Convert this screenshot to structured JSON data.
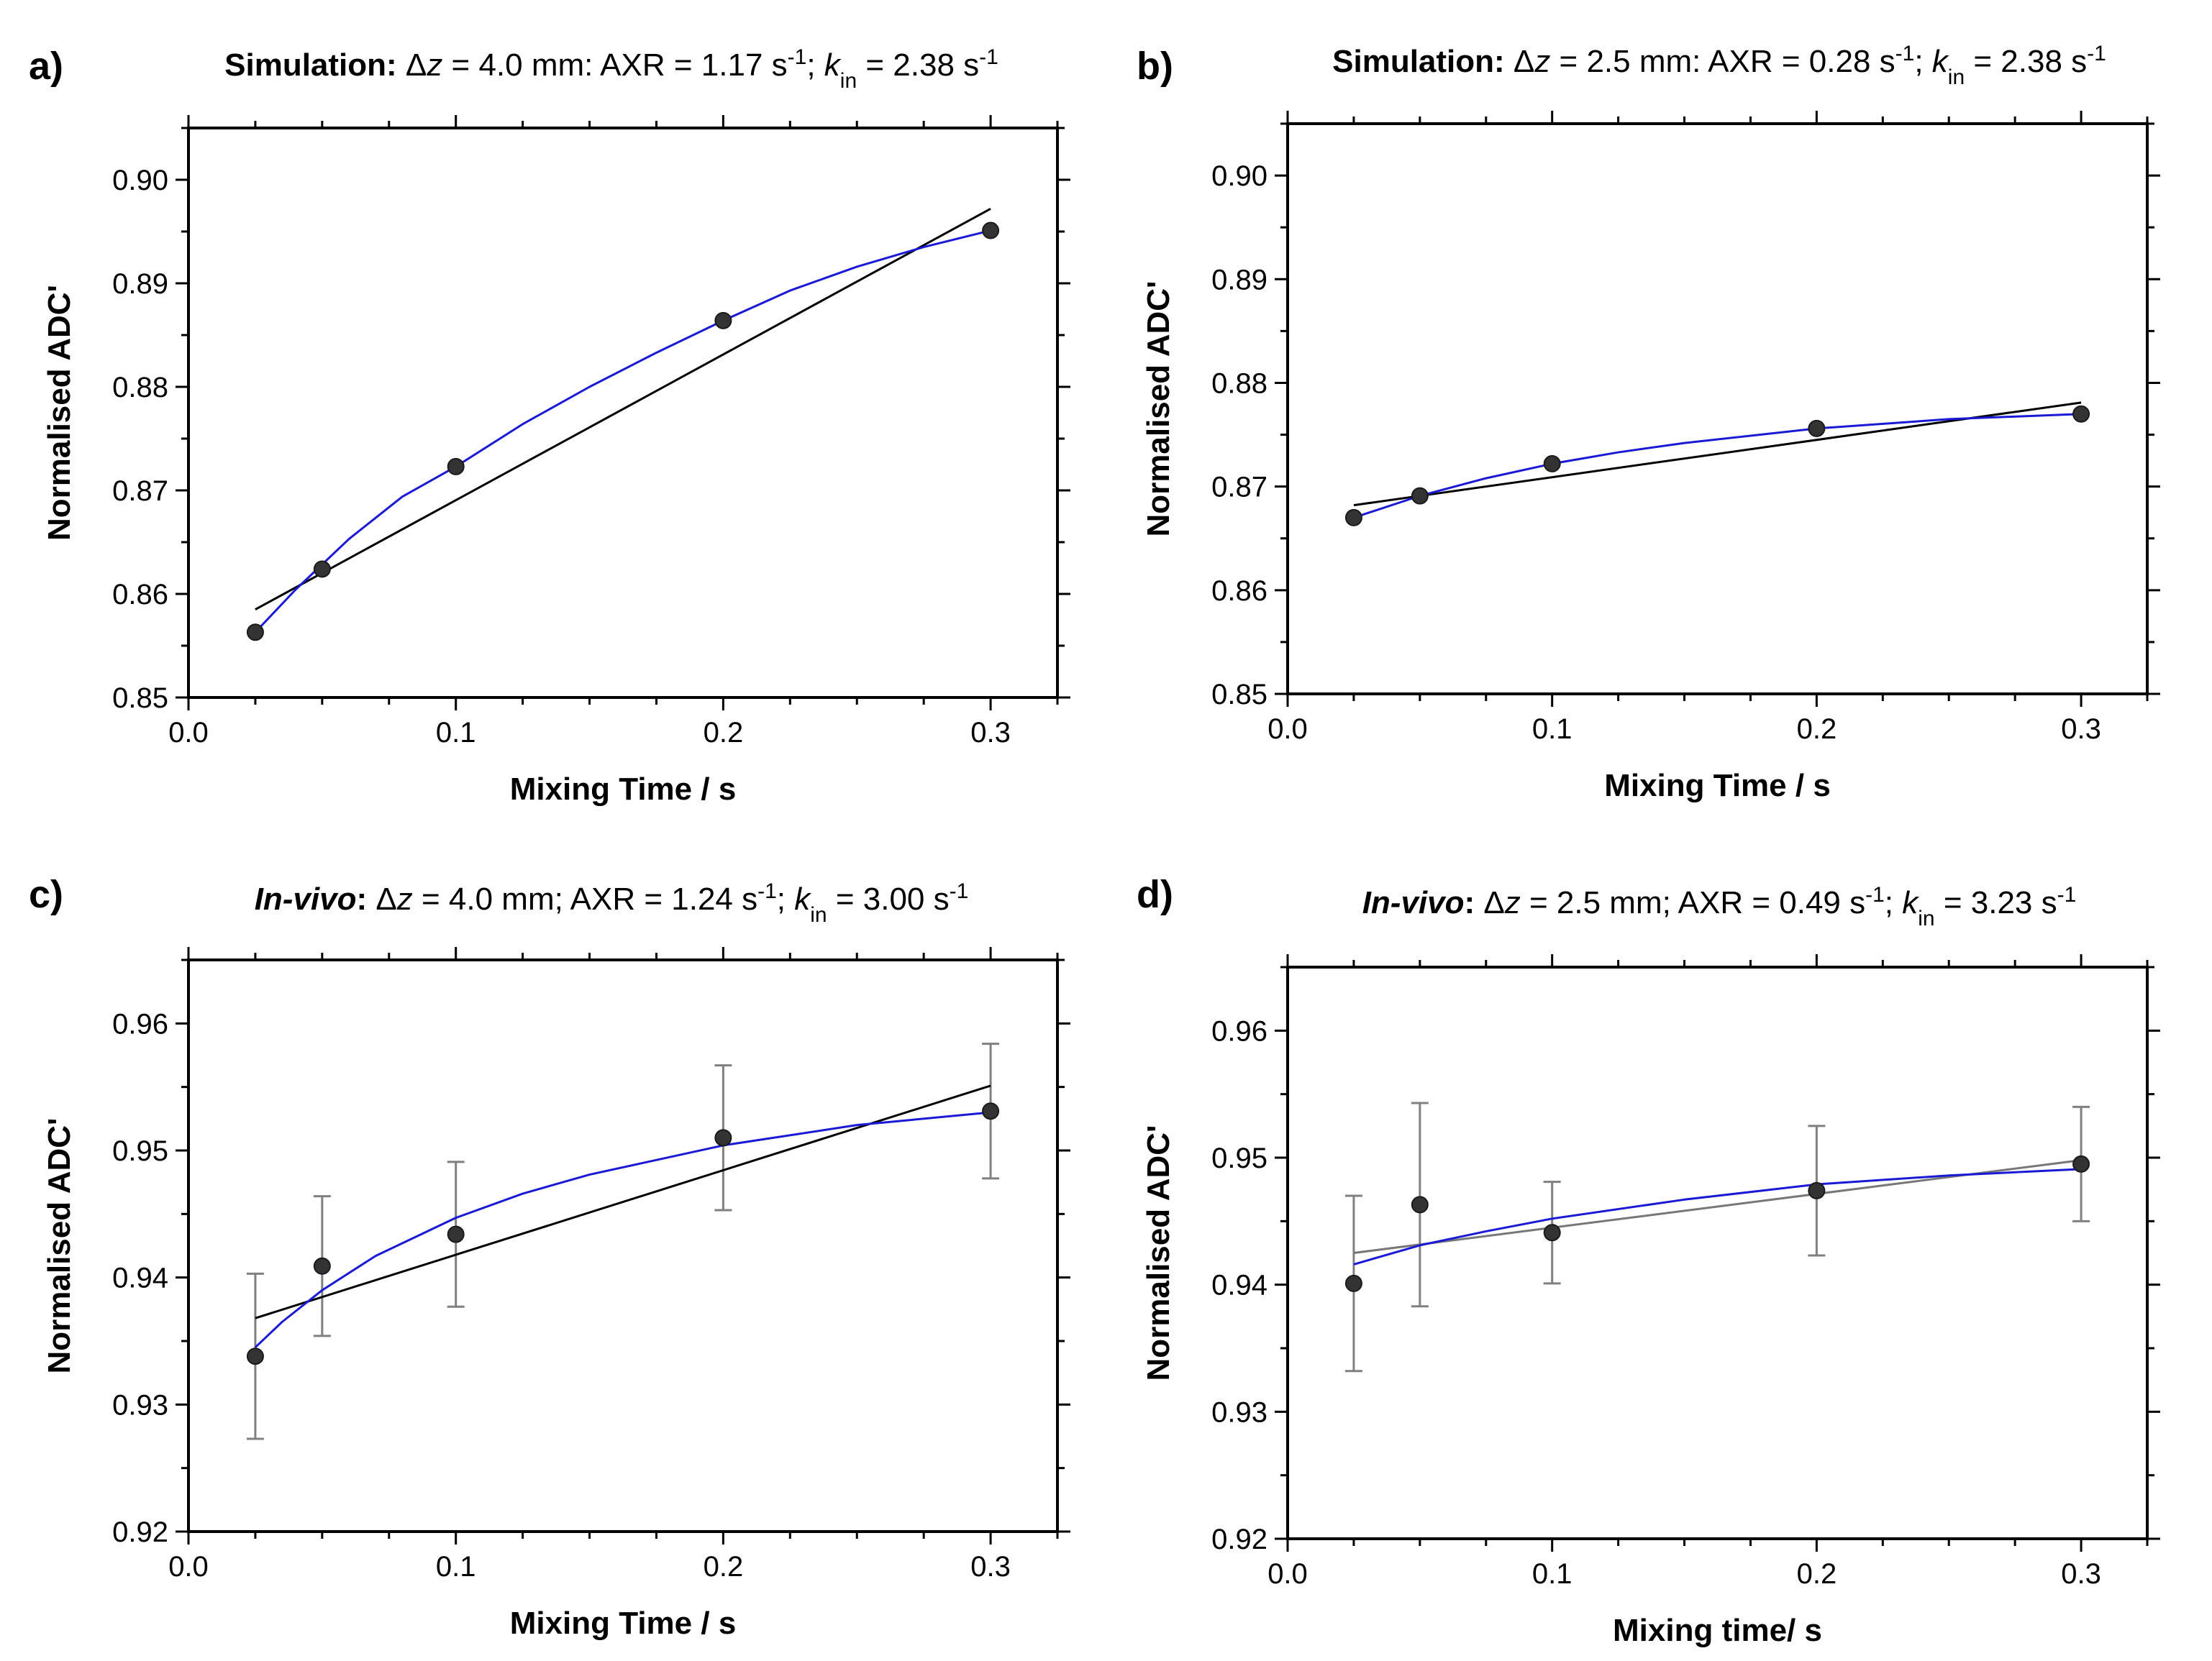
{
  "chart_data": [
    {
      "panel": "a)",
      "type": "scatter",
      "title": {
        "prefix": "Simulation:",
        "italic_prefix": false,
        "rest1": " Δ",
        "z": "z",
        "rest2": " = 4.0 mm: AXR = 1.17 s",
        "exp1": "-1",
        "rest3": "; ",
        "k": "k",
        "k_sub": "in",
        "rest4": " = 2.38 s",
        "exp2": "-1"
      },
      "xlabel": "Mixing Time / s",
      "ylabel": "Normalised ADC'",
      "xlim": [
        0,
        0.325
      ],
      "ylim": [
        0.85,
        0.905
      ],
      "xticks": [
        "0.0",
        "0.1",
        "0.2",
        "0.3"
      ],
      "xtick_values": [
        0,
        0.1,
        0.2,
        0.3
      ],
      "yticks": [
        "0.85",
        "0.86",
        "0.87",
        "0.88",
        "0.89",
        "0.90"
      ],
      "ytick_values": [
        0.85,
        0.86,
        0.87,
        0.88,
        0.89,
        0.9
      ],
      "points": {
        "x": [
          0.025,
          0.05,
          0.1,
          0.2,
          0.3
        ],
        "y": [
          0.8563,
          0.8624,
          0.8723,
          0.8864,
          0.8951
        ]
      },
      "errors": null,
      "fit_exp": {
        "name": "exponential fit",
        "color": "#1a1ad6",
        "x": [
          0.025,
          0.04,
          0.06,
          0.08,
          0.1,
          0.125,
          0.15,
          0.175,
          0.2,
          0.225,
          0.25,
          0.275,
          0.3
        ],
        "y": [
          0.8563,
          0.8604,
          0.8653,
          0.8694,
          0.8723,
          0.8764,
          0.88,
          0.8833,
          0.8864,
          0.8893,
          0.8916,
          0.8935,
          0.8951
        ]
      },
      "fit_lin": {
        "name": "linear fit",
        "color": "#000000",
        "x": [
          0.025,
          0.3
        ],
        "y": [
          0.8585,
          0.8972
        ]
      }
    },
    {
      "panel": "b)",
      "type": "scatter",
      "title": {
        "prefix": "Simulation:",
        "italic_prefix": false,
        "rest1": " Δ",
        "z": "z",
        "rest2": " = 2.5 mm: AXR = 0.28 s",
        "exp1": "-1",
        "rest3": "; ",
        "k": "k",
        "k_sub": "in",
        "rest4": " = 2.38 s",
        "exp2": "-1"
      },
      "xlabel": "Mixing Time / s",
      "ylabel": "Normalised ADC'",
      "xlim": [
        0,
        0.325
      ],
      "ylim": [
        0.85,
        0.905
      ],
      "xticks": [
        "0.0",
        "0.1",
        "0.2",
        "0.3"
      ],
      "xtick_values": [
        0,
        0.1,
        0.2,
        0.3
      ],
      "yticks": [
        "0.85",
        "0.86",
        "0.87",
        "0.88",
        "0.89",
        "0.90"
      ],
      "ytick_values": [
        0.85,
        0.86,
        0.87,
        0.88,
        0.89,
        0.9
      ],
      "points": {
        "x": [
          0.025,
          0.05,
          0.1,
          0.2,
          0.3
        ],
        "y": [
          0.867,
          0.8691,
          0.8722,
          0.8756,
          0.877
        ]
      },
      "errors": null,
      "fit_exp": {
        "name": "exponential fit",
        "color": "#1a1ad6",
        "x": [
          0.025,
          0.05,
          0.075,
          0.1,
          0.125,
          0.15,
          0.2,
          0.25,
          0.3
        ],
        "y": [
          0.867,
          0.8691,
          0.8708,
          0.8722,
          0.8733,
          0.8742,
          0.8756,
          0.8765,
          0.877
        ]
      },
      "fit_lin": {
        "name": "linear fit",
        "color": "#000000",
        "x": [
          0.025,
          0.3
        ],
        "y": [
          0.8682,
          0.8781
        ]
      }
    },
    {
      "panel": "c)",
      "type": "scatter",
      "title": {
        "prefix": "In-vivo",
        "italic_prefix": true,
        "colon": ":",
        "rest1": " Δ",
        "z": "z",
        "rest2": " = 4.0 mm; AXR = 1.24 s",
        "exp1": "-1",
        "rest3": "; ",
        "k": "k",
        "k_sub": "in",
        "rest4": " = 3.00 s",
        "exp2": "-1"
      },
      "xlabel": "Mixing Time / s",
      "ylabel": "Normalised ADC'",
      "xlim": [
        0,
        0.325
      ],
      "ylim": [
        0.92,
        0.965
      ],
      "xticks": [
        "0.0",
        "0.1",
        "0.2",
        "0.3"
      ],
      "xtick_values": [
        0,
        0.1,
        0.2,
        0.3
      ],
      "yticks": [
        "0.92",
        "0.93",
        "0.94",
        "0.95",
        "0.96"
      ],
      "ytick_values": [
        0.92,
        0.93,
        0.94,
        0.95,
        0.96
      ],
      "points": {
        "x": [
          0.025,
          0.05,
          0.1,
          0.2,
          0.3
        ],
        "y": [
          0.9338,
          0.9409,
          0.9434,
          0.951,
          0.9531
        ]
      },
      "errors": [
        0.0065,
        0.0055,
        0.0057,
        0.0057,
        0.0053
      ],
      "fit_exp": {
        "name": "exponential fit",
        "color": "#1a1ad6",
        "x": [
          0.025,
          0.035,
          0.05,
          0.07,
          0.1,
          0.125,
          0.15,
          0.2,
          0.25,
          0.3
        ],
        "y": [
          0.9345,
          0.9365,
          0.939,
          0.9417,
          0.9447,
          0.9466,
          0.9481,
          0.9504,
          0.952,
          0.953
        ]
      },
      "fit_lin": {
        "name": "linear fit",
        "color": "#000000",
        "x": [
          0.025,
          0.3
        ],
        "y": [
          0.9368,
          0.9551
        ]
      }
    },
    {
      "panel": "d)",
      "type": "scatter",
      "title": {
        "prefix": "In-vivo",
        "italic_prefix": true,
        "colon": ":",
        "rest1": " Δ",
        "z": "z",
        "rest2": " = 2.5 mm; AXR = 0.49 s",
        "exp1": "-1",
        "rest3": "; ",
        "k": "k",
        "k_sub": "in",
        "rest4": " = 3.23 s",
        "exp2": "-1"
      },
      "xlabel": "Mixing time/ s",
      "ylabel": "Normalised ADC'",
      "xlim": [
        0,
        0.325
      ],
      "ylim": [
        0.92,
        0.965
      ],
      "xticks": [
        "0.0",
        "0.1",
        "0.2",
        "0.3"
      ],
      "xtick_values": [
        0,
        0.1,
        0.2,
        0.3
      ],
      "yticks": [
        "0.92",
        "0.93",
        "0.94",
        "0.95",
        "0.96"
      ],
      "ytick_values": [
        0.92,
        0.93,
        0.94,
        0.95,
        0.96
      ],
      "points": {
        "x": [
          0.025,
          0.05,
          0.1,
          0.2,
          0.3
        ],
        "y": [
          0.9401,
          0.9463,
          0.9441,
          0.9474,
          0.9495
        ]
      },
      "errors": [
        0.0069,
        0.008,
        0.004,
        0.0051,
        0.0045
      ],
      "fit_exp": {
        "name": "exponential fit",
        "color": "#1a1ad6",
        "x": [
          0.025,
          0.05,
          0.075,
          0.1,
          0.15,
          0.2,
          0.25,
          0.3
        ],
        "y": [
          0.9416,
          0.9431,
          0.9442,
          0.9452,
          0.9467,
          0.9479,
          0.9486,
          0.9491
        ]
      },
      "fit_lin": {
        "name": "linear fit",
        "color": "#777777",
        "x": [
          0.025,
          0.3
        ],
        "y": [
          0.9425,
          0.9498
        ]
      }
    }
  ]
}
